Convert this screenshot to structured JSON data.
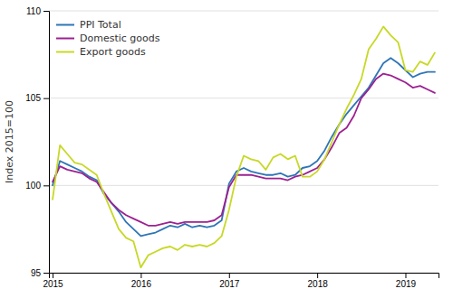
{
  "chart_data": {
    "type": "line",
    "y_label": "Index 2015=100",
    "categories": [
      "2015",
      null,
      null,
      null,
      null,
      null,
      null,
      null,
      null,
      null,
      null,
      null,
      "2016",
      null,
      null,
      null,
      null,
      null,
      null,
      null,
      null,
      null,
      null,
      null,
      "2017",
      null,
      null,
      null,
      null,
      null,
      null,
      null,
      null,
      null,
      null,
      null,
      "2018",
      null,
      null,
      null,
      null,
      null,
      null,
      null,
      null,
      null,
      null,
      null,
      "2019",
      null,
      null,
      null,
      null
    ],
    "series": [
      {
        "name": "PPI Total",
        "color": "#2e75b6",
        "values": [
          100.0,
          101.4,
          101.2,
          101.0,
          100.8,
          100.5,
          100.3,
          99.5,
          99.0,
          98.5,
          97.9,
          97.5,
          97.1,
          97.2,
          97.3,
          97.5,
          97.7,
          97.6,
          97.8,
          97.6,
          97.7,
          97.6,
          97.7,
          98.0,
          100.1,
          100.8,
          101.0,
          100.8,
          100.7,
          100.6,
          100.6,
          100.7,
          100.5,
          100.6,
          101.0,
          101.1,
          101.4,
          102.0,
          102.8,
          103.5,
          104.1,
          104.6,
          105.1,
          105.6,
          106.3,
          107.0,
          107.3,
          107.0,
          106.6,
          106.2,
          106.4,
          106.5,
          106.5
        ]
      },
      {
        "name": "Domestic goods",
        "color": "#9c2191",
        "values": [
          100.2,
          101.1,
          100.9,
          100.8,
          100.7,
          100.4,
          100.2,
          99.6,
          99.0,
          98.6,
          98.3,
          98.1,
          97.9,
          97.7,
          97.7,
          97.8,
          97.9,
          97.8,
          97.9,
          97.9,
          97.9,
          97.9,
          98.0,
          98.3,
          99.9,
          100.6,
          100.6,
          100.6,
          100.5,
          100.4,
          100.4,
          100.4,
          100.3,
          100.5,
          100.6,
          100.8,
          101.0,
          101.5,
          102.2,
          103.0,
          103.3,
          104.0,
          105.0,
          105.5,
          106.1,
          106.4,
          106.3,
          106.1,
          105.9,
          105.6,
          105.7,
          105.5,
          105.3
        ]
      },
      {
        "name": "Export goods",
        "color": "#c8d826",
        "values": [
          99.2,
          102.3,
          101.8,
          101.3,
          101.2,
          100.9,
          100.6,
          99.5,
          98.5,
          97.5,
          97.0,
          96.8,
          95.3,
          96.0,
          96.2,
          96.4,
          96.5,
          96.3,
          96.6,
          96.5,
          96.6,
          96.5,
          96.7,
          97.1,
          98.6,
          100.5,
          101.7,
          101.5,
          101.4,
          100.9,
          101.6,
          101.8,
          101.5,
          101.7,
          100.5,
          100.5,
          100.8,
          101.5,
          102.5,
          103.5,
          104.4,
          105.2,
          106.1,
          107.8,
          108.4,
          109.1,
          108.6,
          108.2,
          106.6,
          106.5,
          107.1,
          106.9,
          107.6
        ]
      }
    ],
    "ylim": [
      95,
      110
    ],
    "yticks": [
      95,
      100,
      105,
      110
    ],
    "grid": true,
    "legend": "upper-left"
  }
}
